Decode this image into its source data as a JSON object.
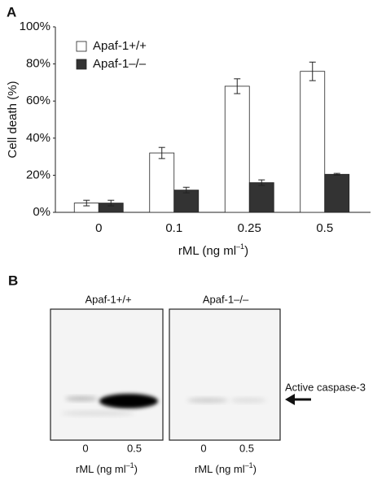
{
  "chart_data": {
    "type": "bar",
    "panel": "A",
    "y_label": "Cell death (%)",
    "x_label": {
      "text": "rML (ng ml",
      "superscript": "–1",
      "suffix": ")"
    },
    "categories": [
      "0",
      "0.1",
      "0.25",
      "0.5"
    ],
    "series": [
      {
        "name": "Apaf-1+/+",
        "color": "#ffffff",
        "values": [
          5,
          32,
          68,
          76
        ],
        "error": [
          1.5,
          3,
          4,
          5
        ]
      },
      {
        "name": "Apaf-1–/–",
        "color": "#333333",
        "values": [
          5,
          12,
          16,
          20.5
        ],
        "error": [
          1.5,
          1.5,
          1.5,
          0.5
        ]
      }
    ],
    "ylim": [
      0,
      100
    ],
    "yticks": [
      {
        "value": 0,
        "label": "0%"
      },
      {
        "value": 20,
        "label": "20%"
      },
      {
        "value": 40,
        "label": "40%"
      },
      {
        "value": 60,
        "label": "60%"
      },
      {
        "value": 80,
        "label": "80%"
      },
      {
        "value": 100,
        "label": "100%"
      }
    ],
    "legend": "upper left",
    "grid": false
  },
  "panel_b": {
    "label": "B",
    "annotation": "Active caspase-3",
    "blots": [
      {
        "title": "Apaf-1+/+",
        "lanes": [
          "0",
          "0.5"
        ],
        "x_label": {
          "text": "rML (ng ml",
          "superscript": "–1",
          "suffix": ")"
        }
      },
      {
        "title": "Apaf-1–/–",
        "lanes": [
          "0",
          "0.5"
        ],
        "x_label": {
          "text": "rML (ng ml",
          "superscript": "–1",
          "suffix": ")"
        }
      }
    ]
  }
}
